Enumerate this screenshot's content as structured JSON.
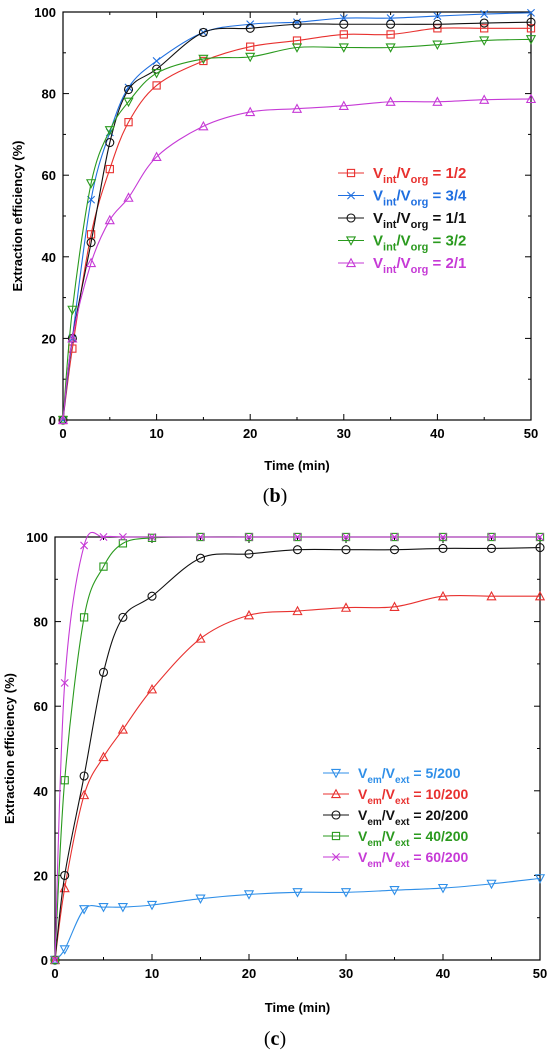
{
  "chart_data": [
    {
      "type": "line",
      "panel_label": "b",
      "xlabel": "Time (min)",
      "ylabel": "Extraction efficiency (%)",
      "xlim": [
        0,
        50
      ],
      "ylim": [
        0,
        100
      ],
      "xticks": [
        0,
        10,
        20,
        30,
        40,
        50
      ],
      "yticks": [
        0,
        20,
        40,
        60,
        80,
        100
      ],
      "grid": false,
      "legend_position": "center-right",
      "series": [
        {
          "name": "1/2",
          "sub_a": "int",
          "sub_b": "org",
          "color": "#e8312f",
          "marker": "square",
          "x": [
            0,
            1,
            3,
            5,
            7,
            10,
            15,
            20,
            25,
            30,
            35,
            40,
            45,
            50
          ],
          "y": [
            0,
            17.5,
            45.5,
            61.5,
            73,
            82,
            88,
            91.5,
            93,
            94.5,
            94.5,
            96,
            96,
            96
          ]
        },
        {
          "name": "3/4",
          "sub_a": "int",
          "sub_b": "org",
          "color": "#1f6fe0",
          "marker": "x",
          "x": [
            0,
            1,
            3,
            5,
            7,
            10,
            15,
            20,
            25,
            30,
            35,
            40,
            45,
            50
          ],
          "y": [
            0,
            20,
            54,
            70.5,
            81.5,
            88,
            95,
            97,
            97.5,
            98.5,
            98.5,
            99,
            99.5,
            99.8
          ]
        },
        {
          "name": "1/1",
          "sub_a": "int",
          "sub_b": "org",
          "color": "#111111",
          "marker": "circle",
          "x": [
            0,
            1,
            3,
            5,
            7,
            10,
            15,
            20,
            25,
            30,
            35,
            40,
            45,
            50
          ],
          "y": [
            0,
            20,
            43.5,
            68,
            81,
            86,
            95,
            96,
            97,
            97,
            97,
            97,
            97.3,
            97.5
          ]
        },
        {
          "name": "3/2",
          "sub_a": "int",
          "sub_b": "org",
          "color": "#2a9a1e",
          "marker": "triangle-down",
          "x": [
            0,
            1,
            3,
            5,
            7,
            10,
            15,
            20,
            25,
            30,
            35,
            40,
            45,
            50
          ],
          "y": [
            0,
            27,
            58,
            71,
            78,
            85,
            88.5,
            89,
            91.3,
            91.3,
            91.3,
            92,
            93,
            93.3
          ]
        },
        {
          "name": "2/1",
          "sub_a": "int",
          "sub_b": "org",
          "color": "#c63ad6",
          "marker": "triangle-up",
          "x": [
            0,
            1,
            3,
            5,
            7,
            10,
            15,
            20,
            25,
            30,
            35,
            40,
            45,
            50
          ],
          "y": [
            0,
            20,
            38.5,
            49,
            54.5,
            64.5,
            72,
            75.5,
            76.3,
            77,
            78,
            78,
            78.5,
            78.7
          ]
        }
      ]
    },
    {
      "type": "line",
      "panel_label": "c",
      "xlabel": "Time (min)",
      "ylabel": "Extraction efficiency (%)",
      "xlim": [
        0,
        50
      ],
      "ylim": [
        0,
        100
      ],
      "xticks": [
        0,
        10,
        20,
        30,
        40,
        50
      ],
      "yticks": [
        0,
        20,
        40,
        60,
        80,
        100
      ],
      "grid": false,
      "legend_position": "center-right",
      "series": [
        {
          "name": "5/200",
          "sub_a": "em",
          "sub_b": "ext",
          "color": "#2f8fe8",
          "marker": "triangle-down",
          "x": [
            0,
            1,
            3,
            5,
            7,
            10,
            15,
            20,
            25,
            30,
            35,
            40,
            45,
            50
          ],
          "y": [
            0,
            2.5,
            12,
            12.5,
            12.5,
            13,
            14.5,
            15.5,
            16,
            16,
            16.5,
            17,
            18,
            19.3
          ]
        },
        {
          "name": "10/200",
          "sub_a": "em",
          "sub_b": "ext",
          "color": "#e8312f",
          "marker": "triangle-up",
          "x": [
            0,
            1,
            3,
            5,
            7,
            10,
            15,
            20,
            25,
            30,
            35,
            40,
            45,
            50
          ],
          "y": [
            0,
            17,
            39,
            48,
            54.5,
            64,
            76,
            81.5,
            82.5,
            83.3,
            83.5,
            86,
            86,
            86
          ]
        },
        {
          "name": "20/200",
          "sub_a": "em",
          "sub_b": "ext",
          "color": "#111111",
          "marker": "circle",
          "x": [
            0,
            1,
            3,
            5,
            7,
            10,
            15,
            20,
            25,
            30,
            35,
            40,
            45,
            50
          ],
          "y": [
            0,
            20,
            43.5,
            68,
            81,
            86,
            95,
            96,
            97,
            97,
            97,
            97.3,
            97.3,
            97.5
          ]
        },
        {
          "name": "40/200",
          "sub_a": "em",
          "sub_b": "ext",
          "color": "#2a9a1e",
          "marker": "square",
          "x": [
            0,
            1,
            3,
            5,
            7,
            10,
            15,
            20,
            25,
            30,
            35,
            40,
            45,
            50
          ],
          "y": [
            0,
            42.5,
            81,
            93,
            98.5,
            99.8,
            100,
            100,
            100,
            100,
            100,
            100,
            100,
            100
          ]
        },
        {
          "name": "60/200",
          "sub_a": "em",
          "sub_b": "ext",
          "color": "#c63ad6",
          "marker": "x",
          "x": [
            0,
            1,
            3,
            5,
            7,
            10,
            15,
            20,
            25,
            30,
            35,
            40,
            45,
            50
          ],
          "y": [
            0,
            65.5,
            98,
            100,
            100,
            100,
            100,
            100,
            100,
            100,
            100,
            100,
            100,
            100
          ]
        }
      ]
    }
  ]
}
